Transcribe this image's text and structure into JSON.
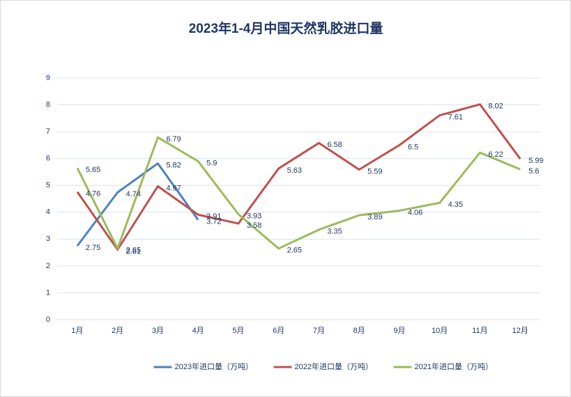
{
  "chart_data": {
    "type": "line",
    "title": "2023年1-4月中国天然乳胶进口量",
    "categories": [
      "1月",
      "2月",
      "3月",
      "4月",
      "5月",
      "6月",
      "7月",
      "8月",
      "9月",
      "10月",
      "11月",
      "12月"
    ],
    "series": [
      {
        "name": "2023年进口量（万吨）",
        "color": "#4f81bd",
        "values": [
          2.75,
          4.74,
          5.82,
          3.72,
          null,
          null,
          null,
          null,
          null,
          null,
          null,
          null
        ]
      },
      {
        "name": "2022年进口量（万吨）",
        "color": "#c0504d",
        "values": [
          4.76,
          2.61,
          4.97,
          3.91,
          3.58,
          5.63,
          6.58,
          5.59,
          6.5,
          7.61,
          8.02,
          5.99
        ]
      },
      {
        "name": "2021年进口量（万吨）",
        "color": "#9bbb59",
        "values": [
          5.65,
          2.65,
          6.79,
          5.9,
          3.93,
          2.65,
          3.35,
          3.89,
          4.06,
          4.35,
          6.22,
          5.6
        ]
      }
    ],
    "ylim": [
      0,
      9
    ],
    "yticks": [
      0,
      1,
      2,
      3,
      4,
      5,
      6,
      7,
      8,
      9
    ],
    "grid": true,
    "legend": "bottom"
  }
}
